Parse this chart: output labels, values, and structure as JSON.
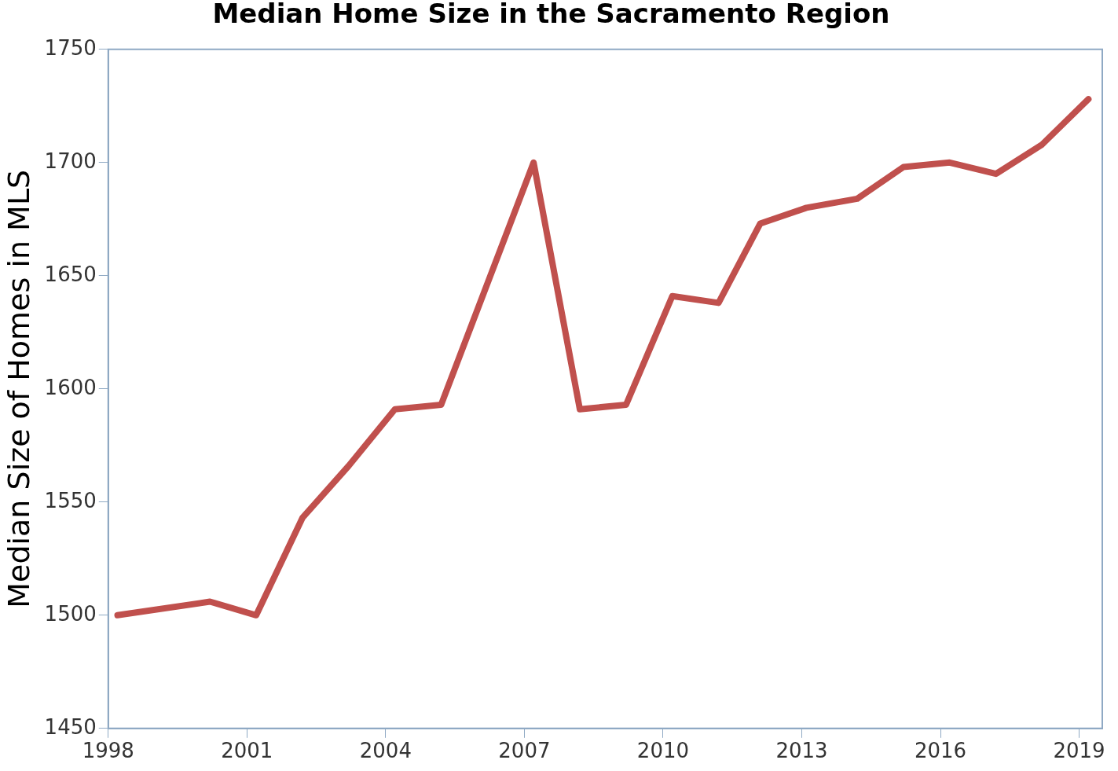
{
  "chart_data": {
    "type": "line",
    "title": "Median Home Size in the Sacramento Region",
    "ylabel": "Median Size of Homes in MLS",
    "x": [
      1998.2,
      2000.2,
      2001.2,
      2002.2,
      2003.2,
      2004.2,
      2005.2,
      2007.2,
      2008.2,
      2009.2,
      2010.2,
      2011.2,
      2012.1,
      2013.1,
      2014.2,
      2015.2,
      2016.2,
      2017.2,
      2018.2,
      2019.2
    ],
    "series": [
      {
        "color": "#c0504d",
        "values": [
          1500,
          1506,
          1500,
          1543,
          1566,
          1591,
          1593,
          1700,
          1591,
          1593,
          1641,
          1638,
          1673,
          1680,
          1684,
          1698,
          1700,
          1695,
          1708,
          1728
        ]
      }
    ],
    "xlim": [
      1998,
      2019.5
    ],
    "xticks": [
      1998,
      2001,
      2004,
      2007,
      2010,
      2013,
      2016,
      2019
    ],
    "ylim": [
      1450,
      1750
    ],
    "yticks": [
      1450,
      1500,
      1550,
      1600,
      1650,
      1700,
      1750
    ],
    "grid": false,
    "legend": false,
    "marker": "none",
    "line_style": "solid"
  }
}
